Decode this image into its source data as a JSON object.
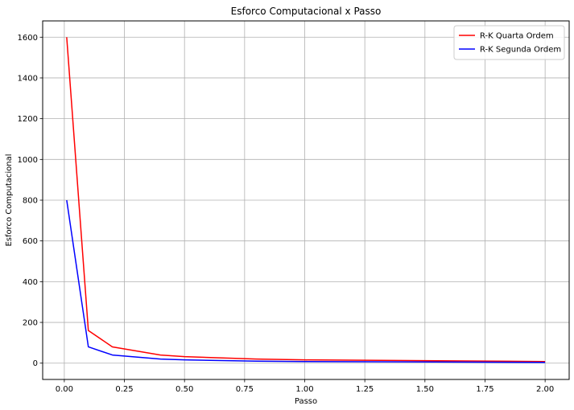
{
  "chart_data": {
    "type": "line",
    "title": "Esforco Computacional x Passo",
    "xlabel": "Passo",
    "ylabel": "Esforco Computacional",
    "xlim": [
      -0.09,
      2.1
    ],
    "ylim": [
      -80,
      1680
    ],
    "xticks": [
      0.0,
      0.25,
      0.5,
      0.75,
      1.0,
      1.25,
      1.5,
      1.75,
      2.0
    ],
    "xtick_labels": [
      "0.00",
      "0.25",
      "0.50",
      "0.75",
      "1.00",
      "1.25",
      "1.50",
      "1.75",
      "2.00"
    ],
    "yticks": [
      0,
      200,
      400,
      600,
      800,
      1000,
      1200,
      1400,
      1600
    ],
    "ytick_labels": [
      "0",
      "200",
      "400",
      "600",
      "800",
      "1000",
      "1200",
      "1400",
      "1600"
    ],
    "grid": true,
    "legend_position": "top-right",
    "x": [
      0.01,
      0.1,
      0.2,
      0.4,
      0.5,
      0.8,
      1.0,
      2.0
    ],
    "series": [
      {
        "name": "R-K Quarta Ordem",
        "color": "#ff0000",
        "values": [
          1600,
          160,
          80,
          40,
          32,
          20,
          16,
          8
        ]
      },
      {
        "name": "R-K Segunda Ordem",
        "color": "#0000ff",
        "values": [
          800,
          80,
          40,
          20,
          16,
          10,
          8,
          4
        ]
      }
    ]
  }
}
